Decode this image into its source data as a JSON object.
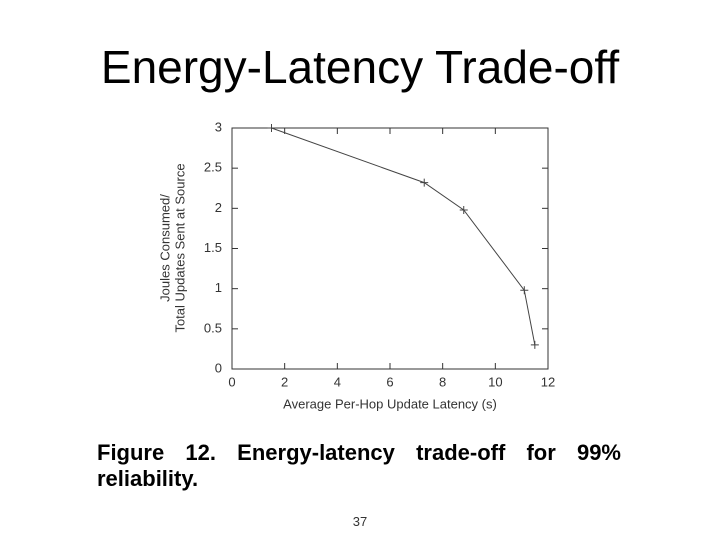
{
  "title": "Energy-Latency Trade-off",
  "chart_data": {
    "type": "line",
    "xlabel": "Average Per-Hop Update Latency (s)",
    "ylabel": [
      "Joules Consumed/",
      "Total Updates Sent at Source"
    ],
    "x": [
      1.5,
      7.3,
      8.8,
      11.1,
      11.5
    ],
    "values": [
      3.0,
      2.32,
      1.98,
      0.98,
      0.3
    ],
    "color": "#444444",
    "xlim": [
      0,
      12
    ],
    "ylim": [
      0,
      3
    ],
    "xticks": [
      0,
      2,
      4,
      6,
      8,
      10,
      12
    ],
    "yticks": [
      0,
      0.5,
      1,
      1.5,
      2,
      2.5,
      3
    ]
  },
  "caption": "Figure 12. Energy-latency trade-off for 99% reliability.",
  "page_number": "37"
}
